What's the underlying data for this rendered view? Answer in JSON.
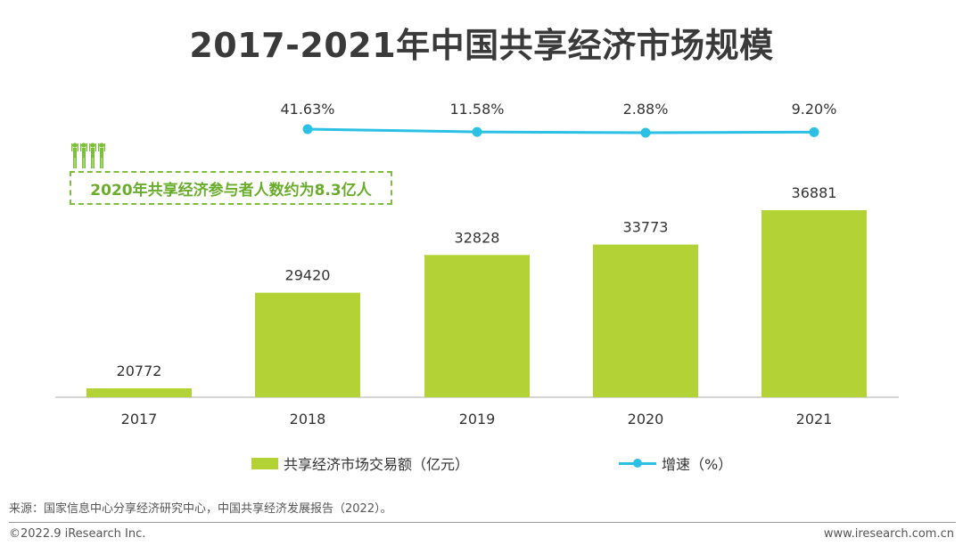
{
  "title": "2017-2021年中国共享经济市场规模",
  "callout": "2020年共享经济参与者人数约为8.3亿人",
  "chart_data": {
    "type": "bar",
    "categories": [
      "2017",
      "2018",
      "2019",
      "2020",
      "2021"
    ],
    "series": [
      {
        "name": "共享经济市场交易额（亿元）",
        "type": "bar",
        "values": [
          20772,
          29420,
          32828,
          33773,
          36881
        ],
        "color": "#b2d235"
      },
      {
        "name": "增速（%）",
        "type": "line",
        "x": [
          "2018",
          "2019",
          "2020",
          "2021"
        ],
        "values": [
          41.63,
          11.58,
          2.88,
          9.2
        ],
        "labels": [
          "41.63%",
          "11.58%",
          "2.88%",
          "9.20%"
        ],
        "color": "#2bc0e4"
      }
    ],
    "title": "2017-2021年中国共享经济市场规模",
    "legend_position": "bottom",
    "grid": false
  },
  "legend": {
    "bar_label": "共享经济市场交易额（亿元）",
    "line_label": "增速（%）"
  },
  "source": "来源：国家信息中心分享经济研究中心，中国共享经济发展报告（2022）。",
  "footer": {
    "copyright": "©2022.9 iResearch Inc.",
    "website": "www.iresearch.com.cn"
  }
}
